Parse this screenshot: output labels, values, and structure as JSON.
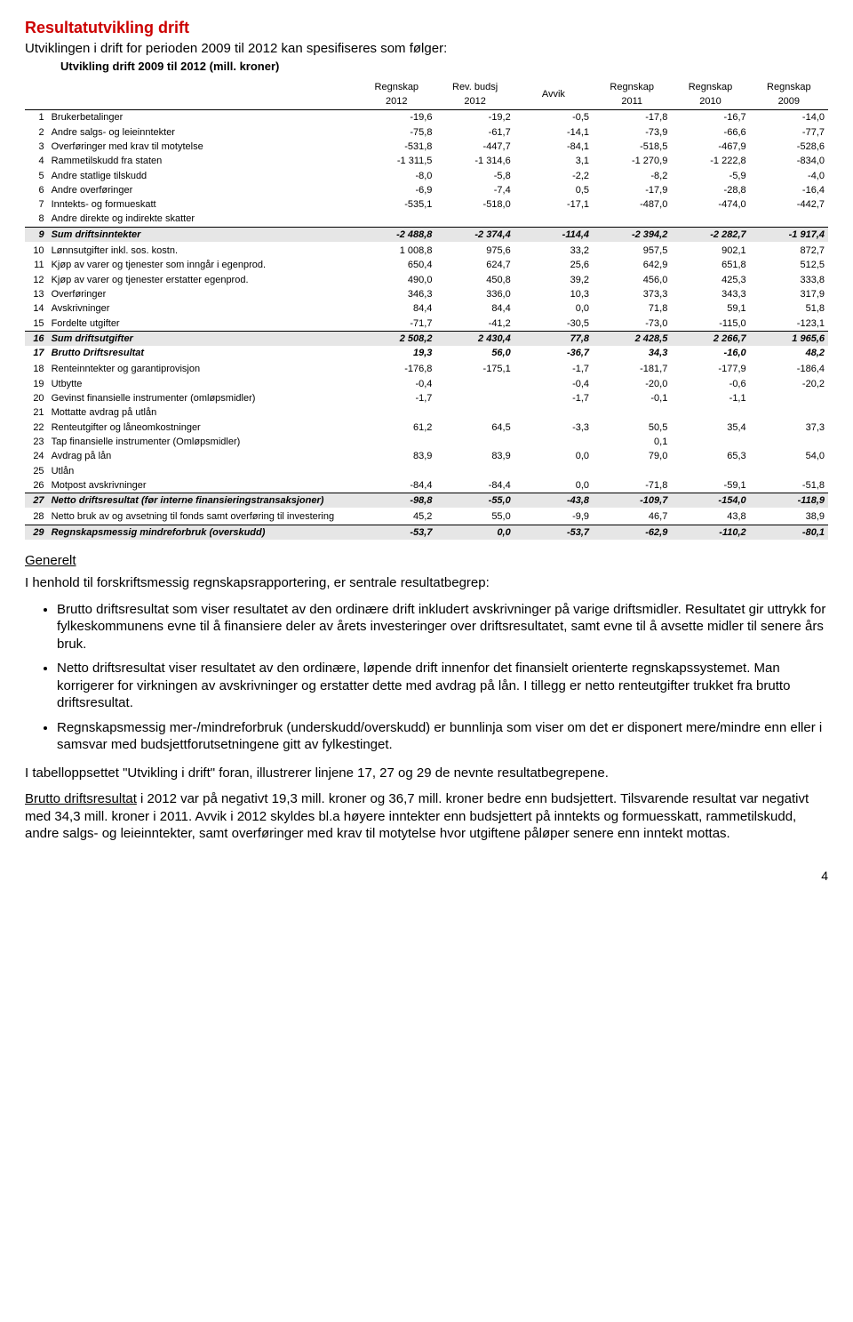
{
  "heading": {
    "main": "Resultatutvikling drift",
    "sub": "Utviklingen i drift for perioden 2009 til 2012 kan spesifiseres som følger:",
    "tableTitle": "Utvikling drift 2009 til 2012 (mill. kroner)"
  },
  "columns": {
    "h1": [
      "",
      "",
      "Regnskap",
      "Rev. budsj",
      "",
      "Regnskap",
      "Regnskap",
      "Regnskap"
    ],
    "h2": [
      "",
      "",
      "2012",
      "2012",
      "Avvik",
      "2011",
      "2010",
      "2009"
    ]
  },
  "rows": [
    {
      "n": "1",
      "label": "Brukerbetalinger",
      "v": [
        "-19,6",
        "-19,2",
        "-0,5",
        "-17,8",
        "-16,7",
        "-14,0"
      ]
    },
    {
      "n": "2",
      "label": "Andre salgs- og leieinntekter",
      "v": [
        "-75,8",
        "-61,7",
        "-14,1",
        "-73,9",
        "-66,6",
        "-77,7"
      ]
    },
    {
      "n": "3",
      "label": "Overføringer med krav til motytelse",
      "v": [
        "-531,8",
        "-447,7",
        "-84,1",
        "-518,5",
        "-467,9",
        "-528,6"
      ]
    },
    {
      "n": "4",
      "label": "Rammetilskudd fra staten",
      "v": [
        "-1 311,5",
        "-1 314,6",
        "3,1",
        "-1 270,9",
        "-1 222,8",
        "-834,0"
      ]
    },
    {
      "n": "5",
      "label": "Andre statlige tilskudd",
      "v": [
        "-8,0",
        "-5,8",
        "-2,2",
        "-8,2",
        "-5,9",
        "-4,0"
      ]
    },
    {
      "n": "6",
      "label": "Andre overføringer",
      "v": [
        "-6,9",
        "-7,4",
        "0,5",
        "-17,9",
        "-28,8",
        "-16,4"
      ]
    },
    {
      "n": "7",
      "label": "Inntekts- og formueskatt",
      "v": [
        "-535,1",
        "-518,0",
        "-17,1",
        "-487,0",
        "-474,0",
        "-442,7"
      ]
    },
    {
      "n": "8",
      "label": "Andre direkte og indirekte skatter",
      "v": [
        "",
        "",
        "",
        "",
        "",
        ""
      ]
    },
    {
      "n": "9",
      "label": "Sum driftsinntekter",
      "v": [
        "-2 488,8",
        "-2 374,4",
        "-114,4",
        "-2 394,2",
        "-2 282,7",
        "-1 917,4"
      ],
      "cls": "bold italic shaded section-top"
    },
    {
      "n": "10",
      "label": "Lønnsutgifter inkl. sos. kostn.",
      "v": [
        "1 008,8",
        "975,6",
        "33,2",
        "957,5",
        "902,1",
        "872,7"
      ],
      "cls": "section-gap"
    },
    {
      "n": "11",
      "label": "Kjøp av varer og tjenester som inngår i egenprod.",
      "v": [
        "650,4",
        "624,7",
        "25,6",
        "642,9",
        "651,8",
        "512,5"
      ]
    },
    {
      "n": "12",
      "label": "Kjøp av varer og tjenester erstatter egenprod.",
      "v": [
        "490,0",
        "450,8",
        "39,2",
        "456,0",
        "425,3",
        "333,8"
      ]
    },
    {
      "n": "13",
      "label": "Overføringer",
      "v": [
        "346,3",
        "336,0",
        "10,3",
        "373,3",
        "343,3",
        "317,9"
      ]
    },
    {
      "n": "14",
      "label": "Avskrivninger",
      "v": [
        "84,4",
        "84,4",
        "0,0",
        "71,8",
        "59,1",
        "51,8"
      ]
    },
    {
      "n": "15",
      "label": "Fordelte utgifter",
      "v": [
        "-71,7",
        "-41,2",
        "-30,5",
        "-73,0",
        "-115,0",
        "-123,1"
      ]
    },
    {
      "n": "16",
      "label": "Sum driftsutgifter",
      "v": [
        "2 508,2",
        "2 430,4",
        "77,8",
        "2 428,5",
        "2 266,7",
        "1 965,6"
      ],
      "cls": "bold italic shaded section-top"
    },
    {
      "n": "17",
      "label": "Brutto Driftsresultat",
      "v": [
        "19,3",
        "56,0",
        "-36,7",
        "34,3",
        "-16,0",
        "48,2"
      ],
      "cls": "bold italic"
    },
    {
      "n": "18",
      "label": "Renteinntekter og garantiprovisjon",
      "v": [
        "-176,8",
        "-175,1",
        "-1,7",
        "-181,7",
        "-177,9",
        "-186,4"
      ],
      "cls": "section-gap"
    },
    {
      "n": "19",
      "label": "Utbytte",
      "v": [
        "-0,4",
        "",
        "-0,4",
        "-20,0",
        "-0,6",
        "-20,2"
      ]
    },
    {
      "n": "20",
      "label": "Gevinst finansielle instrumenter (omløpsmidler)",
      "v": [
        "-1,7",
        "",
        "-1,7",
        "-0,1",
        "-1,1",
        ""
      ]
    },
    {
      "n": "21",
      "label": "Mottatte avdrag på utlån",
      "v": [
        "",
        "",
        "",
        "",
        "",
        ""
      ]
    },
    {
      "n": "22",
      "label": "Renteutgifter og låneomkostninger",
      "v": [
        "61,2",
        "64,5",
        "-3,3",
        "50,5",
        "35,4",
        "37,3"
      ]
    },
    {
      "n": "23",
      "label": "Tap finansielle instrumenter (Omløpsmidler)",
      "v": [
        "",
        "",
        "",
        "0,1",
        "",
        ""
      ]
    },
    {
      "n": "24",
      "label": "Avdrag på lån",
      "v": [
        "83,9",
        "83,9",
        "0,0",
        "79,0",
        "65,3",
        "54,0"
      ]
    },
    {
      "n": "25",
      "label": "Utlån",
      "v": [
        "",
        "",
        "",
        "",
        "",
        ""
      ]
    },
    {
      "n": "26",
      "label": "Motpost avskrivninger",
      "v": [
        "-84,4",
        "-84,4",
        "0,0",
        "-71,8",
        "-59,1",
        "-51,8"
      ]
    },
    {
      "n": "27",
      "label": "Netto driftsresultat  (før interne finansieringstransaksjoner)",
      "v": [
        "-98,8",
        "-55,0",
        "-43,8",
        "-109,7",
        "-154,0",
        "-118,9"
      ],
      "cls": "bold italic shaded section-top",
      "labelItalicPart": "(før interne finansieringstransaksjoner)"
    },
    {
      "n": "28",
      "label": "Netto bruk av og avsetning til fonds samt overføring til investering",
      "v": [
        "45,2",
        "55,0",
        "-9,9",
        "46,7",
        "43,8",
        "38,9"
      ],
      "cls": "section-gap"
    },
    {
      "n": "29",
      "label": "Regnskapsmessig mindreforbruk  (overskudd)",
      "v": [
        "-53,7",
        "0,0",
        "-53,7",
        "-62,9",
        "-110,2",
        "-80,1"
      ],
      "cls": "bold italic shaded section-top"
    }
  ],
  "body": {
    "h3": "Generelt",
    "p1": "I henhold til forskriftsmessig regnskapsrapportering, er sentrale resultatbegrep:",
    "bullets": [
      "Brutto driftsresultat som viser resultatet av den ordinære drift inkludert avskrivninger på varige driftsmidler. Resultatet gir uttrykk for fylkeskommunens evne til å finansiere deler av årets investeringer over driftsresultatet, samt evne til å avsette midler til senere års bruk.",
      "Netto driftsresultat viser resultatet av den ordinære, løpende drift innenfor det finansielt orienterte regnskapssystemet. Man korrigerer for virkningen av avskrivninger og erstatter dette med avdrag på lån. I tillegg er netto renteutgifter trukket fra brutto driftsresultat.",
      "Regnskapsmessig mer-/mindreforbruk (underskudd/overskudd) er bunnlinja som viser om det er disponert mere/mindre enn eller i samsvar med budsjettforutsetningene gitt av fylkestinget."
    ],
    "p2": "I tabelloppsettet \"Utvikling i drift\" foran, illustrerer linjene 17, 27 og 29 de nevnte resultatbegrepene.",
    "p3a": "Brutto driftsresultat",
    "p3b": " i 2012 var på negativt 19,3 mill. kroner og 36,7 mill. kroner bedre enn budsjettert. Tilsvarende resultat var negativt med 34,3 mill. kroner i 2011. Avvik i 2012 skyldes bl.a høyere inntekter enn budsjettert på inntekts og formuesskatt, rammetilskudd, andre salgs- og leieinntekter, samt overføringer med krav til motytelse hvor utgiftene påløper senere enn inntekt mottas."
  },
  "pagenum": "4",
  "colors": {
    "red": "#cc0000",
    "shade": "#e6e6e6"
  }
}
